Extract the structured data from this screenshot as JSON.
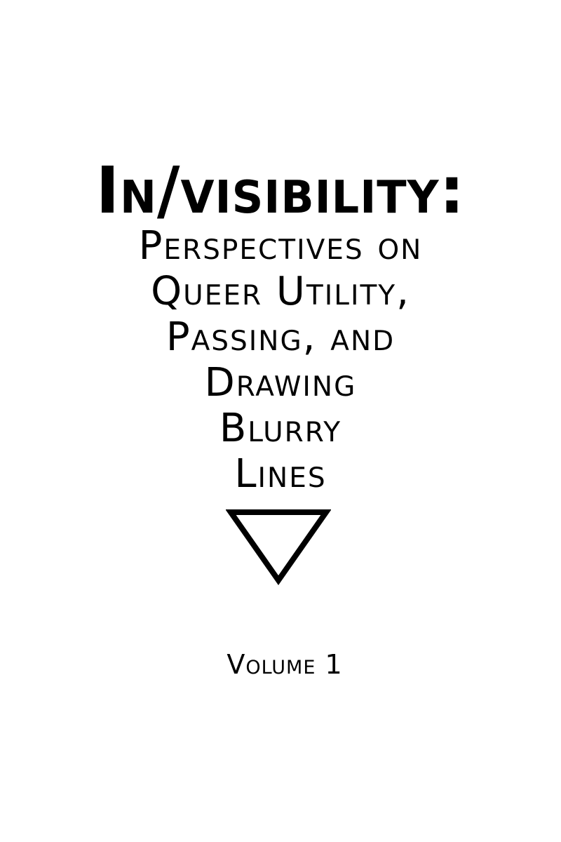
{
  "cover": {
    "title": "In/visibility:",
    "subtitle_lines": [
      "Perspectives on",
      "Queer Utility,",
      "Passing, and",
      "Drawing",
      "Blurry",
      "Lines"
    ],
    "emblem_icon": "inverted-triangle-icon",
    "volume": "Volume 1",
    "colors": {
      "text": "#000000",
      "background": "#ffffff"
    }
  }
}
